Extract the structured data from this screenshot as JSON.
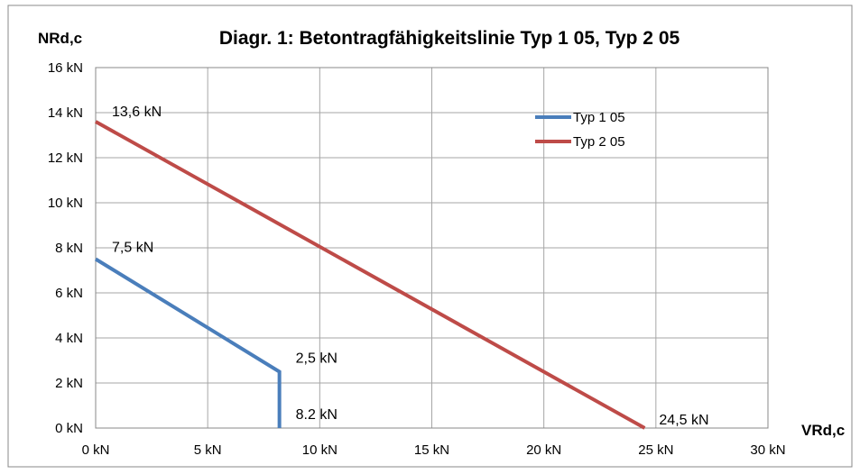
{
  "colors": {
    "background": "#ffffff",
    "grid": "#a6a6a6",
    "frame": "#888888",
    "typ1": "#4a7ebb",
    "typ2": "#be4b48"
  },
  "chart_data": {
    "type": "line",
    "title": "Diagr. 1: Betontragfähigkeitslinie Typ 1 05, Typ 2 05",
    "xlabel": "VRd,c",
    "ylabel": "NRd,c",
    "xlim": [
      0,
      30
    ],
    "ylim": [
      0,
      16
    ],
    "grid": true,
    "legend_position": "top-right",
    "x_ticks": [
      {
        "value": 0,
        "label": "0 kN"
      },
      {
        "value": 5,
        "label": "5 kN"
      },
      {
        "value": 10,
        "label": "10 kN"
      },
      {
        "value": 15,
        "label": "15 kN"
      },
      {
        "value": 20,
        "label": "20 kN"
      },
      {
        "value": 25,
        "label": "25 kN"
      },
      {
        "value": 30,
        "label": "30 kN"
      }
    ],
    "y_ticks": [
      {
        "value": 0,
        "label": "0 kN"
      },
      {
        "value": 2,
        "label": "2 kN"
      },
      {
        "value": 4,
        "label": "4 kN"
      },
      {
        "value": 6,
        "label": "6 kN"
      },
      {
        "value": 8,
        "label": "8 kN"
      },
      {
        "value": 10,
        "label": "10 kN"
      },
      {
        "value": 12,
        "label": "12 kN"
      },
      {
        "value": 14,
        "label": "14 kN"
      },
      {
        "value": 16,
        "label": "16 kN"
      }
    ],
    "series": [
      {
        "name": "Typ 1 05",
        "color": "#4a7ebb",
        "x": [
          0,
          8.2,
          8.2
        ],
        "y": [
          7.5,
          2.5,
          0
        ]
      },
      {
        "name": "Typ 2 05",
        "color": "#be4b48",
        "x": [
          0,
          24.5
        ],
        "y": [
          13.6,
          0
        ]
      }
    ],
    "annotations": [
      {
        "text": "13,6 kN",
        "x": 0,
        "y": 13.6
      },
      {
        "text": "7,5 kN",
        "x": 0,
        "y": 7.5
      },
      {
        "text": "2,5 kN",
        "x": 8.2,
        "y": 2.5
      },
      {
        "text": "8.2 kN",
        "x": 8.2,
        "y": 0
      },
      {
        "text": "24,5 kN",
        "x": 24.5,
        "y": 0
      }
    ]
  }
}
